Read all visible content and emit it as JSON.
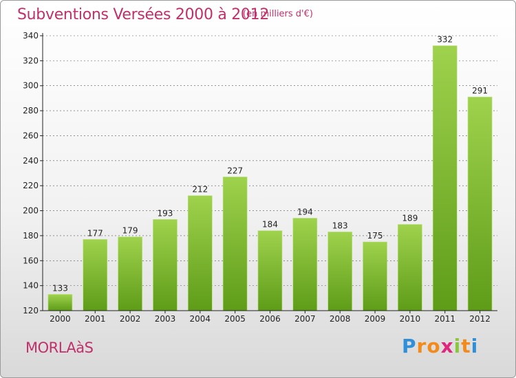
{
  "header": {
    "title": "Subventions Versées 2000 à 2012",
    "unit": "(en milliers d'€)"
  },
  "footer": {
    "place": "MORLAàS",
    "logo_text": "Proxiti",
    "logo_letters": [
      {
        "ch": "P",
        "color": "#2f8fd8"
      },
      {
        "ch": "r",
        "color": "#f28a1c"
      },
      {
        "ch": "o",
        "color": "#f28a1c"
      },
      {
        "ch": "x",
        "color": "#e0257c"
      },
      {
        "ch": "i",
        "color": "#8cc63f"
      },
      {
        "ch": "t",
        "color": "#f28a1c"
      },
      {
        "ch": "i",
        "color": "#2f8fd8"
      }
    ]
  },
  "colors": {
    "bar_top": "#9fd24d",
    "bar_bottom": "#5e9c18",
    "title": "#c0306a",
    "axis": "#222222",
    "grid": "#555555"
  },
  "chart_data": {
    "type": "bar",
    "categories": [
      "2000",
      "2001",
      "2002",
      "2003",
      "2004",
      "2005",
      "2006",
      "2007",
      "2008",
      "2009",
      "2010",
      "2011",
      "2012"
    ],
    "values": [
      133,
      177,
      179,
      193,
      212,
      227,
      184,
      194,
      183,
      175,
      189,
      332,
      291
    ],
    "title": "Subventions Versées 2000 à 2012",
    "ylim": [
      120,
      340
    ],
    "yticks": [
      120,
      140,
      160,
      180,
      200,
      220,
      240,
      260,
      280,
      300,
      320,
      340
    ],
    "grid": "horizontal dashed",
    "data_labels": true
  }
}
